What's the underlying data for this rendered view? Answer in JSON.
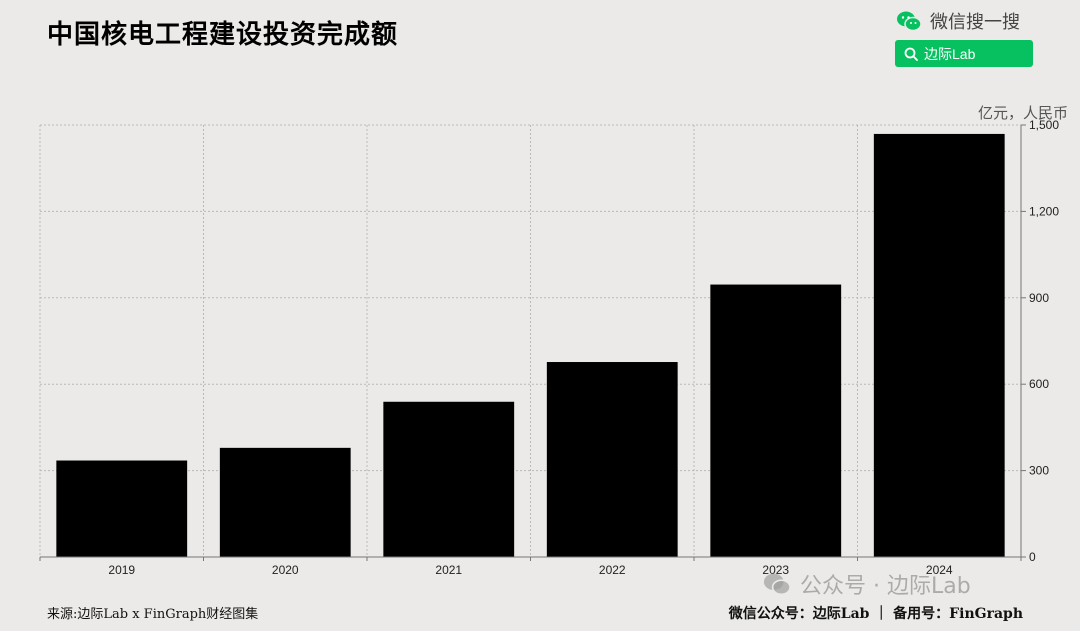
{
  "header": {
    "title": "中国核电工程建设投资完成额",
    "wechat_search_label": "微信搜一搜",
    "search_term": "边际Lab"
  },
  "chart_data": {
    "type": "bar",
    "unit_label": "亿元，人民币",
    "categories": [
      "2019",
      "2020",
      "2021",
      "2022",
      "2023",
      "2024"
    ],
    "values": [
      335,
      379,
      539,
      677,
      946,
      1469
    ],
    "ylim": [
      0,
      1500
    ],
    "yticks": [
      0,
      300,
      600,
      900,
      1200,
      1500
    ],
    "ytick_labels": [
      "0",
      "300",
      "600",
      "900",
      "1,200",
      "1,500"
    ],
    "y_axis_side": "right",
    "grid": true,
    "bar_color": "#000000"
  },
  "footer": {
    "source": "来源:边际Lab x FinGraph财经图集",
    "credits": "微信公众号：边际Lab ｜ 备用号：FinGraph",
    "watermark": "公众号 · 边际Lab"
  },
  "colors": {
    "background": "#ebeae8",
    "accent_green": "#07c160",
    "grid": "#b9b9b9"
  },
  "icons": [
    "wechat-icon",
    "search-icon"
  ]
}
